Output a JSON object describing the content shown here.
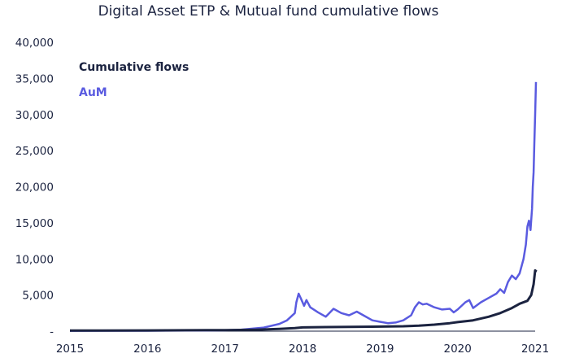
{
  "chart_data": {
    "type": "line",
    "title": "Digital Asset ETP & Mutual fund cumulative flows",
    "xlabel": "",
    "ylabel": "",
    "x_ticks": [
      "2015",
      "2016",
      "2017",
      "2018",
      "2019",
      "2020",
      "2021"
    ],
    "y_ticks": [
      "-",
      "5,000",
      "10,000",
      "15,000",
      "20,000",
      "25,000",
      "30,000",
      "35,000",
      "40,000"
    ],
    "xlim": [
      2015.0,
      2021.0
    ],
    "ylim": [
      0,
      40000
    ],
    "grid": false,
    "legend_position": "top-left",
    "series": [
      {
        "name": "Cumulative flows",
        "color": "#1b2340",
        "points": [
          [
            2015.0,
            80
          ],
          [
            2016.0,
            100
          ],
          [
            2016.5,
            120
          ],
          [
            2017.0,
            150
          ],
          [
            2017.4,
            200
          ],
          [
            2017.7,
            300
          ],
          [
            2017.9,
            420
          ],
          [
            2018.0,
            520
          ],
          [
            2018.3,
            560
          ],
          [
            2018.6,
            600
          ],
          [
            2018.9,
            620
          ],
          [
            2019.0,
            630
          ],
          [
            2019.3,
            680
          ],
          [
            2019.5,
            750
          ],
          [
            2019.7,
            900
          ],
          [
            2019.9,
            1100
          ],
          [
            2020.0,
            1250
          ],
          [
            2020.2,
            1500
          ],
          [
            2020.4,
            2000
          ],
          [
            2020.55,
            2500
          ],
          [
            2020.7,
            3200
          ],
          [
            2020.8,
            3800
          ],
          [
            2020.9,
            4200
          ],
          [
            2020.95,
            5000
          ],
          [
            2020.98,
            6500
          ],
          [
            2021.0,
            8400
          ],
          [
            2021.01,
            8300
          ],
          [
            2021.02,
            8250
          ]
        ]
      },
      {
        "name": "AuM",
        "color": "#5a5be0",
        "points": [
          [
            2015.0,
            50
          ],
          [
            2016.0,
            60
          ],
          [
            2016.5,
            80
          ],
          [
            2017.0,
            120
          ],
          [
            2017.2,
            200
          ],
          [
            2017.5,
            500
          ],
          [
            2017.7,
            1000
          ],
          [
            2017.8,
            1500
          ],
          [
            2017.9,
            2500
          ],
          [
            2017.92,
            4000
          ],
          [
            2017.95,
            5200
          ],
          [
            2017.98,
            4500
          ],
          [
            2018.02,
            3500
          ],
          [
            2018.05,
            4300
          ],
          [
            2018.1,
            3300
          ],
          [
            2018.2,
            2600
          ],
          [
            2018.3,
            2000
          ],
          [
            2018.4,
            3100
          ],
          [
            2018.5,
            2500
          ],
          [
            2018.6,
            2200
          ],
          [
            2018.7,
            2700
          ],
          [
            2018.8,
            2100
          ],
          [
            2018.9,
            1500
          ],
          [
            2019.0,
            1300
          ],
          [
            2019.1,
            1100
          ],
          [
            2019.2,
            1200
          ],
          [
            2019.3,
            1500
          ],
          [
            2019.4,
            2200
          ],
          [
            2019.45,
            3300
          ],
          [
            2019.5,
            4000
          ],
          [
            2019.55,
            3700
          ],
          [
            2019.6,
            3800
          ],
          [
            2019.7,
            3300
          ],
          [
            2019.8,
            3000
          ],
          [
            2019.9,
            3100
          ],
          [
            2019.95,
            2600
          ],
          [
            2020.0,
            3000
          ],
          [
            2020.1,
            4000
          ],
          [
            2020.15,
            4300
          ],
          [
            2020.2,
            3200
          ],
          [
            2020.3,
            4000
          ],
          [
            2020.4,
            4600
          ],
          [
            2020.5,
            5200
          ],
          [
            2020.55,
            5800
          ],
          [
            2020.6,
            5300
          ],
          [
            2020.65,
            6800
          ],
          [
            2020.7,
            7700
          ],
          [
            2020.75,
            7200
          ],
          [
            2020.8,
            8000
          ],
          [
            2020.85,
            10000
          ],
          [
            2020.88,
            12000
          ],
          [
            2020.9,
            14500
          ],
          [
            2020.92,
            15300
          ],
          [
            2020.94,
            14000
          ],
          [
            2020.96,
            17000
          ],
          [
            2020.97,
            20000
          ],
          [
            2020.98,
            22000
          ],
          [
            2020.99,
            26000
          ],
          [
            2021.0,
            30000
          ],
          [
            2021.01,
            34500
          ]
        ]
      }
    ]
  }
}
